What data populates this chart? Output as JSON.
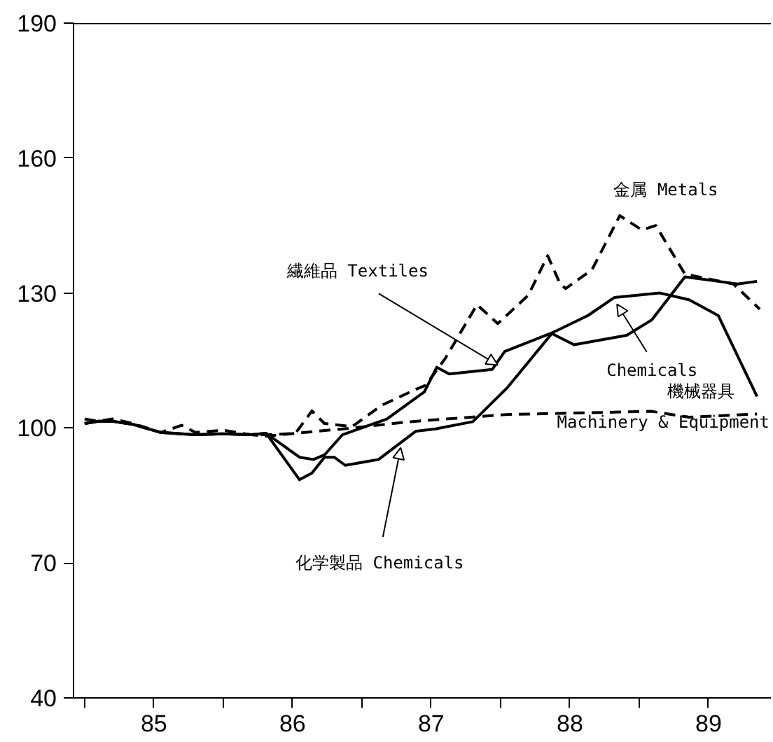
{
  "chart_data": {
    "type": "line",
    "xlim": [
      84.92,
      89.95
    ],
    "ylim": [
      40,
      190
    ],
    "xticks": [
      {
        "value": 85,
        "label": null
      },
      {
        "value": 85.5,
        "label": "85"
      },
      {
        "value": 86,
        "label": null
      },
      {
        "value": 86.5,
        "label": "86"
      },
      {
        "value": 87,
        "label": null
      },
      {
        "value": 87.5,
        "label": "87"
      },
      {
        "value": 88,
        "label": null
      },
      {
        "value": 88.5,
        "label": "88"
      },
      {
        "value": 89,
        "label": null
      },
      {
        "value": 89.5,
        "label": "89"
      }
    ],
    "yticks": [
      40,
      70,
      100,
      130,
      160,
      190
    ],
    "series": [
      {
        "color": "#000000",
        "line_style": "solid",
        "x": [
          85.0,
          85.1,
          85.2,
          85.35,
          85.55,
          85.8,
          86.0,
          86.2,
          86.31,
          86.55,
          86.65,
          86.73,
          86.86,
          87.18,
          87.45,
          87.54,
          87.63,
          87.94,
          88.03,
          88.36,
          88.43,
          88.63,
          88.82,
          89.15,
          89.36,
          89.57,
          89.85
        ],
        "values": [
          101,
          101.5,
          101.5,
          100.8,
          99,
          98.5,
          98.7,
          98.5,
          98.8,
          93.5,
          93,
          94,
          98.5,
          102,
          108,
          113.5,
          112,
          113,
          117,
          121,
          122,
          125,
          129,
          130,
          128.5,
          125,
          107
        ]
      },
      {
        "color": "#000000",
        "line_style": "solid",
        "x": [
          85.0,
          85.1,
          85.2,
          85.35,
          85.55,
          85.8,
          86.0,
          86.2,
          86.31,
          86.55,
          86.64,
          86.73,
          86.8,
          86.88,
          87.12,
          87.39,
          87.53,
          87.8,
          88.05,
          88.37,
          88.53,
          88.91,
          89.09,
          89.33,
          89.57,
          89.71,
          89.85
        ],
        "values": [
          101,
          101.5,
          101.5,
          100.8,
          99,
          98.5,
          98.7,
          98.5,
          98.8,
          88.5,
          90,
          93.5,
          93.5,
          91.7,
          93,
          99.3,
          99.8,
          101.4,
          109,
          121,
          118.5,
          120.6,
          124,
          133.6,
          132.6,
          132,
          132.6
        ]
      },
      {
        "color": "#000000",
        "line_style": "dashed",
        "x": [
          85.0,
          85.1,
          85.2,
          85.35,
          85.55,
          85.7,
          85.8,
          86.0,
          86.2,
          86.31,
          86.52,
          86.64,
          86.73,
          86.93,
          87.14,
          87.39,
          87.46,
          87.6,
          87.83,
          87.98,
          88.2,
          88.34,
          88.43,
          88.47,
          88.66,
          88.86,
          89.02,
          89.12,
          89.33,
          89.68,
          89.87
        ],
        "values": [
          102,
          101.5,
          102,
          101,
          99,
          100.6,
          99,
          99.5,
          98.5,
          98.5,
          98.8,
          103.8,
          101,
          100.3,
          105,
          108.6,
          109.5,
          115.4,
          127.4,
          123.2,
          129.5,
          138.3,
          132,
          131,
          135.2,
          147.2,
          144,
          145,
          134.2,
          132,
          126.4
        ]
      },
      {
        "color": "#000000",
        "line_style": "dashed",
        "x": [
          85.0,
          85.1,
          85.2,
          85.35,
          85.55,
          85.8,
          86.0,
          86.2,
          86.31,
          86.93,
          87.35,
          88.05,
          89.09,
          89.36,
          89.85
        ],
        "values": [
          101,
          101.5,
          101.5,
          100.8,
          99,
          98.5,
          98.7,
          98.5,
          98.2,
          100,
          101.4,
          103,
          103.7,
          102.4,
          103.1
        ]
      }
    ],
    "annotations": [
      {
        "text": "繊維品 Textiles",
        "x": 87.98,
        "y": 114
      },
      "金属 Metals",
      {
        "text": "Chemicals",
        "x": 88.84,
        "y": 127.5
      },
      "機械器具\nMachinery & Equipment",
      {
        "text": "化学製品 Chemicals",
        "x": 87.28,
        "y": 95.6
      }
    ]
  }
}
